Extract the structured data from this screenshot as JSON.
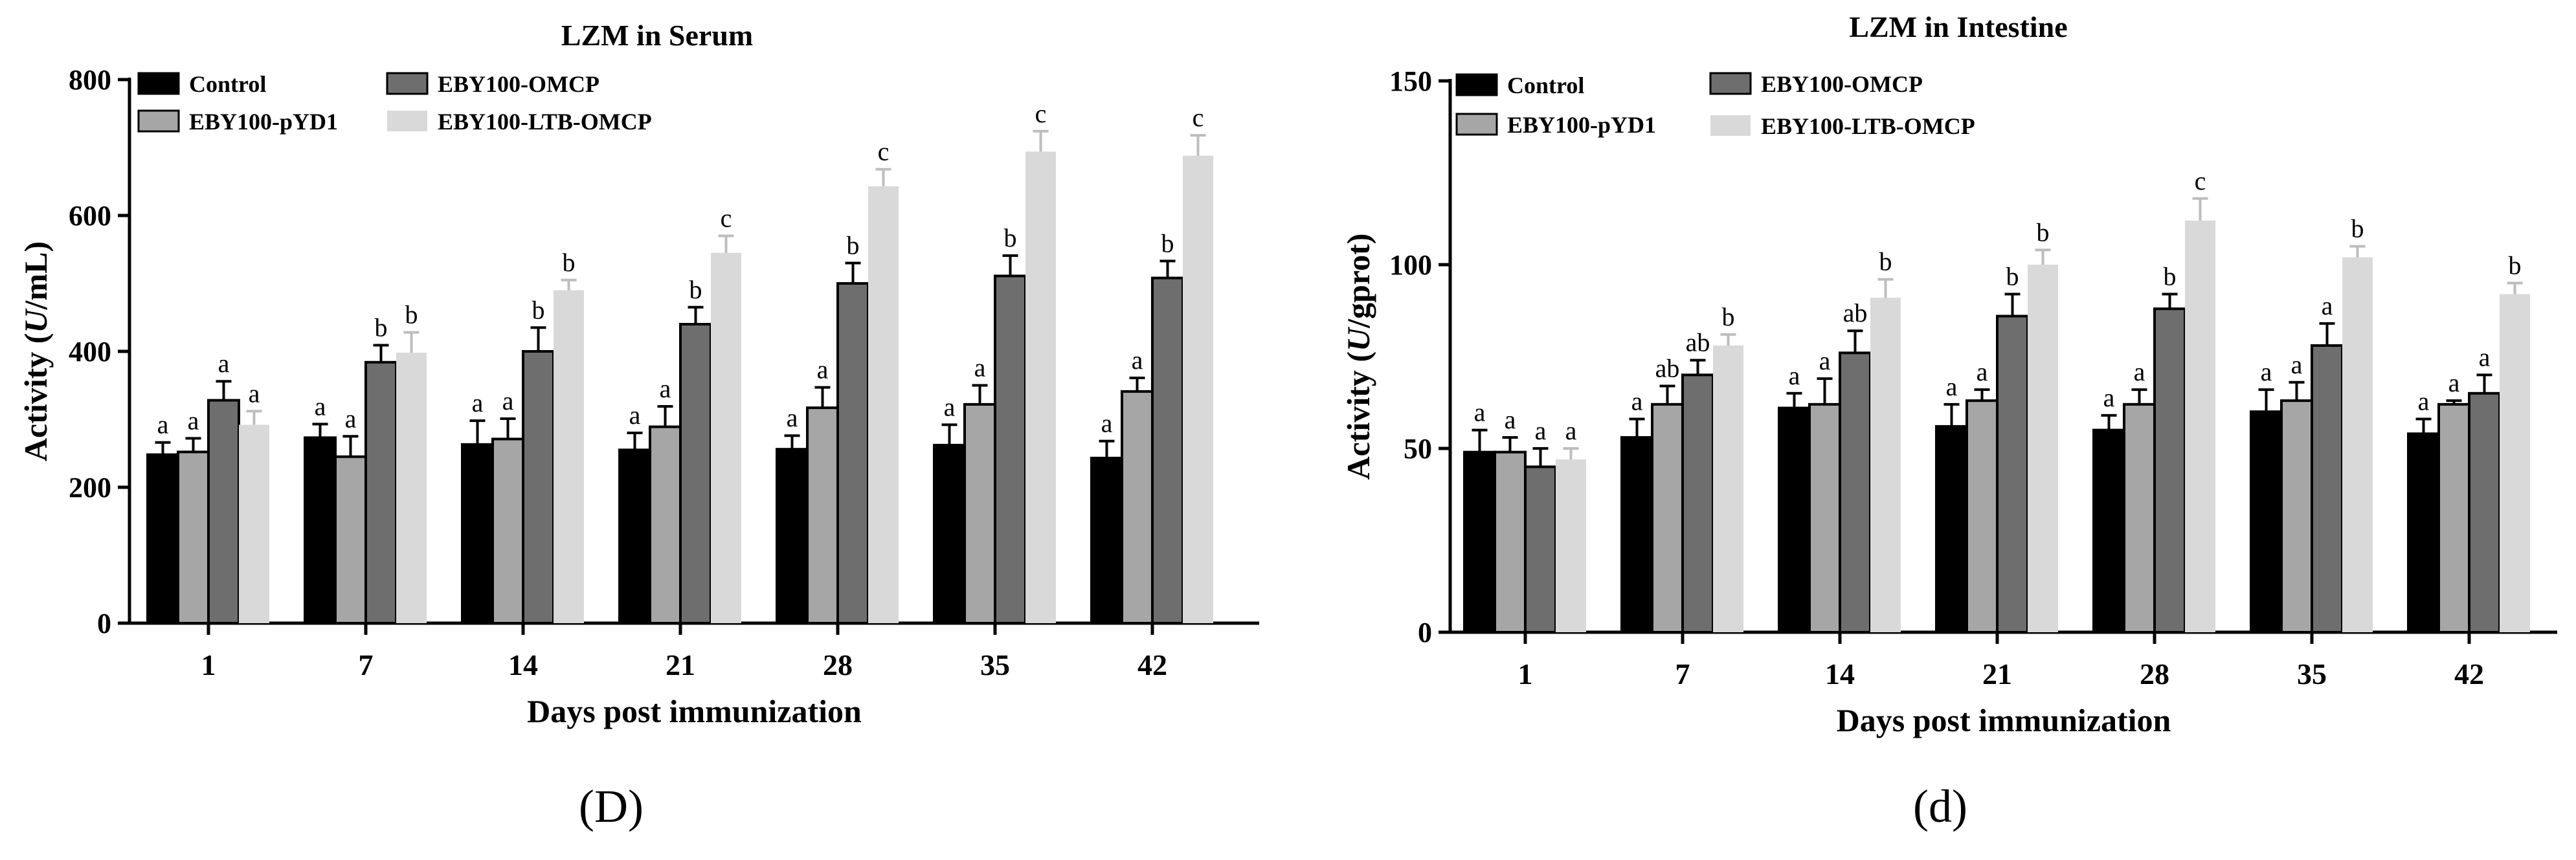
{
  "chart_data": [
    {
      "type": "bar",
      "title": "LZM in Serum",
      "xlabel": "Days post immunization",
      "ylabel_parts": [
        "Activity (",
        "U",
        "/mL)"
      ],
      "ylim": [
        0,
        800
      ],
      "yticks": [
        0,
        200,
        400,
        600,
        800
      ],
      "categories": [
        "1",
        "7",
        "14",
        "21",
        "28",
        "35",
        "42"
      ],
      "series": [
        {
          "name": "Control",
          "color": "#000000",
          "values": [
            248,
            273,
            263,
            255,
            256,
            262,
            243
          ],
          "errors": [
            18,
            20,
            35,
            25,
            20,
            30,
            25
          ],
          "letters": [
            "a",
            "a",
            "a",
            "a",
            "a",
            "a",
            "a"
          ]
        },
        {
          "name": "EBY100-pYD1",
          "color": "#a6a6a6",
          "values": [
            252,
            245,
            271,
            289,
            317,
            322,
            341
          ],
          "errors": [
            20,
            30,
            30,
            30,
            30,
            28,
            20
          ],
          "letters": [
            "a",
            "a",
            "a",
            "a",
            "a",
            "a",
            "a"
          ]
        },
        {
          "name": "EBY100-OMCP",
          "color": "#6e6e6e",
          "values": [
            328,
            384,
            400,
            440,
            500,
            511,
            508
          ],
          "errors": [
            28,
            25,
            35,
            25,
            30,
            30,
            25
          ],
          "letters": [
            "a",
            "b",
            "b",
            "b",
            "b",
            "b",
            "b"
          ]
        },
        {
          "name": "EBY100-LTB-OMCP",
          "color": "#d9d9d9",
          "values": [
            292,
            398,
            490,
            545,
            643,
            694,
            688
          ],
          "errors": [
            20,
            30,
            15,
            25,
            25,
            30,
            30
          ],
          "letters": [
            "a",
            "b",
            "b",
            "c",
            "c",
            "c",
            "c"
          ]
        }
      ],
      "legend": "top-left"
    },
    {
      "type": "bar",
      "title": "LZM in Intestine",
      "xlabel": "Days post immunization",
      "ylabel_parts": [
        "Activity (",
        "U",
        "/gprot)"
      ],
      "ylim": [
        0,
        150
      ],
      "yticks": [
        0,
        50,
        100,
        150
      ],
      "categories": [
        "1",
        "7",
        "14",
        "21",
        "28",
        "35",
        "42"
      ],
      "series": [
        {
          "name": "Control",
          "color": "#000000",
          "values": [
            49,
            53,
            61,
            56,
            55,
            60,
            54
          ],
          "errors": [
            6,
            5,
            4,
            6,
            4,
            6,
            4
          ],
          "letters": [
            "a",
            "a",
            "a",
            "a",
            "a",
            "a",
            "a"
          ]
        },
        {
          "name": "EBY100-pYD1",
          "color": "#a6a6a6",
          "values": [
            49,
            62,
            62,
            63,
            62,
            63,
            62
          ],
          "errors": [
            4,
            5,
            7,
            3,
            4,
            5,
            1
          ],
          "letters": [
            "a",
            "ab",
            "a",
            "a",
            "a",
            "a",
            "a"
          ]
        },
        {
          "name": "EBY100-OMCP",
          "color": "#6e6e6e",
          "values": [
            45,
            70,
            76,
            86,
            88,
            78,
            65
          ],
          "errors": [
            5,
            4,
            6,
            6,
            4,
            6,
            5
          ],
          "letters": [
            "a",
            "ab",
            "ab",
            "b",
            "b",
            "a",
            "a"
          ]
        },
        {
          "name": "EBY100-LTB-OMCP",
          "color": "#d9d9d9",
          "values": [
            47,
            78,
            91,
            100,
            112,
            102,
            92
          ],
          "errors": [
            3,
            3,
            5,
            4,
            6,
            3,
            3
          ],
          "letters": [
            "a",
            "b",
            "b",
            "b",
            "c",
            "b",
            "b"
          ]
        }
      ],
      "legend": "top-left"
    }
  ],
  "panels": {
    "left_label": "(D)",
    "right_label": "(d)"
  }
}
